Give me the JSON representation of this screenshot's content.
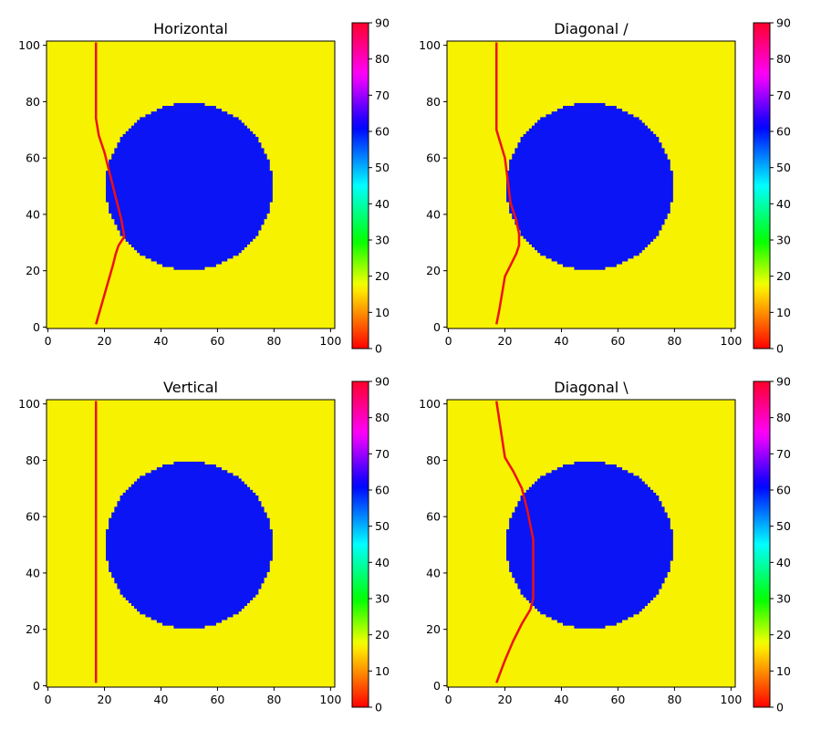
{
  "chart_data": [
    {
      "type": "heatmap",
      "title": "Horizontal",
      "xlim": [
        -0.5,
        101.5
      ],
      "ylim": [
        -0.5,
        101.5
      ],
      "xticks": [
        0,
        20,
        40,
        60,
        80,
        100
      ],
      "yticks": [
        0,
        20,
        40,
        60,
        80,
        100
      ],
      "background_value": 18,
      "background_color": "#f7f200",
      "circle": {
        "center_x": 50,
        "center_y": 50,
        "radius": 29.5,
        "value": 62,
        "color": "#0b14f5"
      },
      "colorbar": {
        "min": 0,
        "max": 90,
        "ticks": [
          0,
          10,
          20,
          30,
          40,
          50,
          60,
          70,
          80,
          90
        ],
        "colormap": "gist_rainbow_r"
      },
      "line": {
        "color": "#ee1111",
        "x": [
          17,
          19,
          21,
          23,
          24,
          25,
          27,
          26,
          24,
          22,
          20,
          18,
          17,
          17
        ],
        "y": [
          1,
          8,
          15,
          22,
          26,
          29,
          32,
          38,
          46,
          54,
          62,
          68,
          74,
          101
        ]
      }
    },
    {
      "type": "heatmap",
      "title": "Diagonal /",
      "xlim": [
        -0.5,
        101.5
      ],
      "ylim": [
        -0.5,
        101.5
      ],
      "xticks": [
        0,
        20,
        40,
        60,
        80,
        100
      ],
      "yticks": [
        0,
        20,
        40,
        60,
        80,
        100
      ],
      "background_value": 18,
      "background_color": "#f7f200",
      "circle": {
        "center_x": 50,
        "center_y": 50,
        "radius": 29.5,
        "value": 62,
        "color": "#0b14f5"
      },
      "colorbar": {
        "min": 0,
        "max": 90,
        "ticks": [
          0,
          10,
          20,
          30,
          40,
          50,
          60,
          70,
          80,
          90
        ],
        "colormap": "gist_rainbow_r"
      },
      "line": {
        "color": "#ee1111",
        "x": [
          17,
          18,
          19,
          20,
          22,
          24,
          25,
          25,
          24,
          22,
          21,
          20,
          17,
          17
        ],
        "y": [
          1,
          6,
          12,
          18,
          22,
          26,
          29,
          33,
          38,
          44,
          52,
          60,
          70,
          101
        ]
      }
    },
    {
      "type": "heatmap",
      "title": "Vertical",
      "xlim": [
        -0.5,
        101.5
      ],
      "ylim": [
        -0.5,
        101.5
      ],
      "xticks": [
        0,
        20,
        40,
        60,
        80,
        100
      ],
      "yticks": [
        0,
        20,
        40,
        60,
        80,
        100
      ],
      "background_value": 18,
      "background_color": "#f7f200",
      "circle": {
        "center_x": 50,
        "center_y": 50,
        "radius": 29.5,
        "value": 62,
        "color": "#0b14f5"
      },
      "colorbar": {
        "min": 0,
        "max": 90,
        "ticks": [
          0,
          10,
          20,
          30,
          40,
          50,
          60,
          70,
          80,
          90
        ],
        "colormap": "gist_rainbow_r"
      },
      "line": {
        "color": "#ee1111",
        "x": [
          17,
          17
        ],
        "y": [
          1,
          101
        ]
      }
    },
    {
      "type": "heatmap",
      "title": "Diagonal \\",
      "xlim": [
        -0.5,
        101.5
      ],
      "ylim": [
        -0.5,
        101.5
      ],
      "xticks": [
        0,
        20,
        40,
        60,
        80,
        100
      ],
      "yticks": [
        0,
        20,
        40,
        60,
        80,
        100
      ],
      "background_value": 18,
      "background_color": "#f7f200",
      "circle": {
        "center_x": 50,
        "center_y": 50,
        "radius": 29.5,
        "value": 62,
        "color": "#0b14f5"
      },
      "colorbar": {
        "min": 0,
        "max": 90,
        "ticks": [
          0,
          10,
          20,
          30,
          40,
          50,
          60,
          70,
          80,
          90
        ],
        "colormap": "gist_rainbow_r"
      },
      "line": {
        "color": "#ee1111",
        "x": [
          17,
          20,
          23,
          26,
          29,
          30,
          30,
          30,
          28,
          26,
          23,
          20,
          17
        ],
        "y": [
          1,
          9,
          16,
          22,
          27,
          31,
          40,
          52,
          62,
          70,
          76,
          81,
          101
        ]
      }
    }
  ]
}
